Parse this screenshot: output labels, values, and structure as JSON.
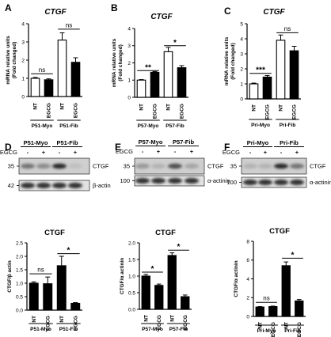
{
  "figure": {
    "panel_labels": [
      "A",
      "B",
      "C",
      "D",
      "E",
      "F"
    ],
    "blots": [
      {
        "groups": [
          "P51-Myo",
          "P51-Fib"
        ],
        "egcg_label": "EGCG",
        "signs": [
          "-",
          "+",
          "-",
          "+"
        ],
        "rows": [
          {
            "mw": "35",
            "protein": "CTGF",
            "band_levels": [
              0.55,
              0.45,
              0.85,
              0.25
            ]
          },
          {
            "mw": "42",
            "protein": "β-actin",
            "band_levels": [
              0.8,
              0.8,
              0.8,
              0.8
            ]
          }
        ]
      },
      {
        "groups": [
          "P57-Myo",
          "P57-Fib"
        ],
        "egcg_label": "EGCG",
        "signs": [
          "-",
          "+",
          "-",
          "+"
        ],
        "rows": [
          {
            "mw": "35",
            "protein": "CTGF",
            "band_levels": [
              0.4,
              0.3,
              0.7,
              0.35
            ]
          },
          {
            "mw": "100",
            "protein": "α-actinin",
            "band_levels": [
              0.8,
              0.8,
              0.8,
              0.8
            ]
          }
        ]
      },
      {
        "groups": [
          "Pri-Myo",
          "Pri-Fib"
        ],
        "egcg_label": "EGCG",
        "signs": [
          "-",
          "+",
          "-",
          "+"
        ],
        "rows": [
          {
            "mw": "35",
            "protein": "CTGF",
            "band_levels": [
              0.3,
              0.3,
              0.85,
              0.55
            ]
          },
          {
            "mw": "100",
            "protein": "α-actinin",
            "band_levels": [
              0.8,
              0.8,
              0.8,
              0.8
            ]
          }
        ]
      }
    ]
  },
  "chart_data": [
    {
      "type": "bar",
      "panel": "A",
      "title": "CTGF",
      "ylabel": "mRNA relative units\n(Fold changed)",
      "ylim": [
        0,
        4
      ],
      "yticks": [
        0,
        1,
        2,
        3,
        4
      ],
      "categories": [
        "NT",
        "EGCG",
        "NT",
        "EGCG"
      ],
      "groups": [
        {
          "label": "P51-Myo",
          "members": [
            0,
            1
          ]
        },
        {
          "label": "P51-Fib",
          "members": [
            2,
            3
          ]
        }
      ],
      "values": [
        1.0,
        0.92,
        3.1,
        1.88
      ],
      "errors": [
        0.05,
        0.05,
        0.4,
        0.25
      ],
      "colors": [
        "#ffffff",
        "#000000",
        "#ffffff",
        "#000000"
      ],
      "significance": [
        {
          "from": 0,
          "to": 1,
          "label": "ns",
          "y": 1.25
        },
        {
          "from": 2,
          "to": 3,
          "label": "ns",
          "y": 3.7
        }
      ]
    },
    {
      "type": "bar",
      "panel": "B",
      "title": "CTGF",
      "ylabel": "mRNA relative units\n(Fold changed)",
      "ylim": [
        0,
        4
      ],
      "yticks": [
        0,
        1,
        2,
        3,
        4
      ],
      "categories": [
        "NT",
        "EGCG",
        "NT",
        "EGCG"
      ],
      "groups": [
        {
          "label": "P57-Myo",
          "members": [
            0,
            1
          ]
        },
        {
          "label": "P57-Fib",
          "members": [
            2,
            3
          ]
        }
      ],
      "values": [
        1.0,
        1.45,
        2.65,
        1.72
      ],
      "errors": [
        0.03,
        0.05,
        0.25,
        0.12
      ],
      "colors": [
        "#ffffff",
        "#000000",
        "#ffffff",
        "#000000"
      ],
      "significance": [
        {
          "from": 0,
          "to": 1,
          "label": "**",
          "y": 1.55
        },
        {
          "from": 2,
          "to": 3,
          "label": "*",
          "y": 3.0
        }
      ]
    },
    {
      "type": "bar",
      "panel": "C",
      "title": "CTGF",
      "ylabel": "mRNA relative units\n(Fold changed)",
      "ylim": [
        0,
        5
      ],
      "yticks": [
        0,
        1,
        2,
        3,
        4,
        5
      ],
      "categories": [
        "NT",
        "EGCG",
        "NT",
        "EGCG"
      ],
      "groups": [
        {
          "label": "Pri-Myo",
          "members": [
            0,
            1
          ]
        },
        {
          "label": "Pri-Fib",
          "members": [
            2,
            3
          ]
        }
      ],
      "values": [
        1.0,
        1.45,
        3.9,
        3.2
      ],
      "errors": [
        0.05,
        0.1,
        0.35,
        0.3
      ],
      "colors": [
        "#ffffff",
        "#000000",
        "#ffffff",
        "#000000"
      ],
      "significance": [
        {
          "from": 0,
          "to": 1,
          "label": "***",
          "y": 1.7
        },
        {
          "from": 2,
          "to": 3,
          "label": "ns",
          "y": 4.4
        }
      ]
    },
    {
      "type": "bar",
      "panel": "D",
      "title": "CTGF",
      "ylabel": "CTGF/β actin",
      "ylim": [
        0,
        2.5
      ],
      "yticks": [
        0.0,
        0.5,
        1.0,
        1.5,
        2.0,
        2.5
      ],
      "yticklabels": [
        "0.0",
        "0.5",
        "1.0",
        "1.5",
        "2.0",
        "2.5"
      ],
      "categories": [
        "NT",
        "EGCG",
        "NT",
        "EGCG"
      ],
      "groups": [
        {
          "label": "P51-Myo",
          "members": [
            0,
            1
          ]
        },
        {
          "label": "P51-Fib",
          "members": [
            2,
            3
          ]
        }
      ],
      "values": [
        1.0,
        0.98,
        1.65,
        0.25
      ],
      "errors": [
        0.05,
        0.25,
        0.35,
        0.03
      ],
      "colors": [
        "#000000",
        "#000000",
        "#000000",
        "#000000"
      ],
      "significance": [
        {
          "from": 0,
          "to": 1,
          "label": "ns",
          "y": 1.35
        },
        {
          "from": 2,
          "to": 3,
          "label": "*",
          "y": 2.1
        }
      ]
    },
    {
      "type": "bar",
      "panel": "E",
      "title": "CTGF",
      "ylabel": "CTGF/α actinin",
      "ylim": [
        0,
        2.0
      ],
      "yticks": [
        0.0,
        0.5,
        1.0,
        1.5,
        2.0
      ],
      "yticklabels": [
        "0.0",
        "0.5",
        "1.0",
        "1.5",
        "2.0"
      ],
      "categories": [
        "NT",
        "EGCG",
        "NT",
        "EGCG"
      ],
      "groups": [
        {
          "label": "P57-Myo",
          "members": [
            0,
            1
          ]
        },
        {
          "label": "P57-Fib",
          "members": [
            2,
            3
          ]
        }
      ],
      "values": [
        1.0,
        0.72,
        1.62,
        0.38
      ],
      "errors": [
        0.05,
        0.04,
        0.08,
        0.05
      ],
      "colors": [
        "#000000",
        "#000000",
        "#000000",
        "#000000"
      ],
      "significance": [
        {
          "from": 0,
          "to": 1,
          "label": "*",
          "y": 1.12
        },
        {
          "from": 2,
          "to": 3,
          "label": "*",
          "y": 1.78
        }
      ]
    },
    {
      "type": "bar",
      "panel": "F",
      "title": "CTGF",
      "ylabel": "CTGF/α actinin",
      "ylim": [
        0,
        8
      ],
      "yticks": [
        0,
        2,
        4,
        6,
        8
      ],
      "categories": [
        "NT",
        "EGCG",
        "NT",
        "EGCG"
      ],
      "groups": [
        {
          "label": "Pri-Myo",
          "members": [
            0,
            1
          ]
        },
        {
          "label": "Pri-Fib",
          "members": [
            2,
            3
          ]
        }
      ],
      "values": [
        1.0,
        1.05,
        5.4,
        1.65
      ],
      "errors": [
        0.05,
        0.05,
        0.4,
        0.15
      ],
      "colors": [
        "#000000",
        "#000000",
        "#000000",
        "#000000"
      ],
      "significance": [
        {
          "from": 0,
          "to": 1,
          "label": "ns",
          "y": 1.5
        },
        {
          "from": 2,
          "to": 3,
          "label": "*",
          "y": 6.2
        }
      ]
    }
  ]
}
